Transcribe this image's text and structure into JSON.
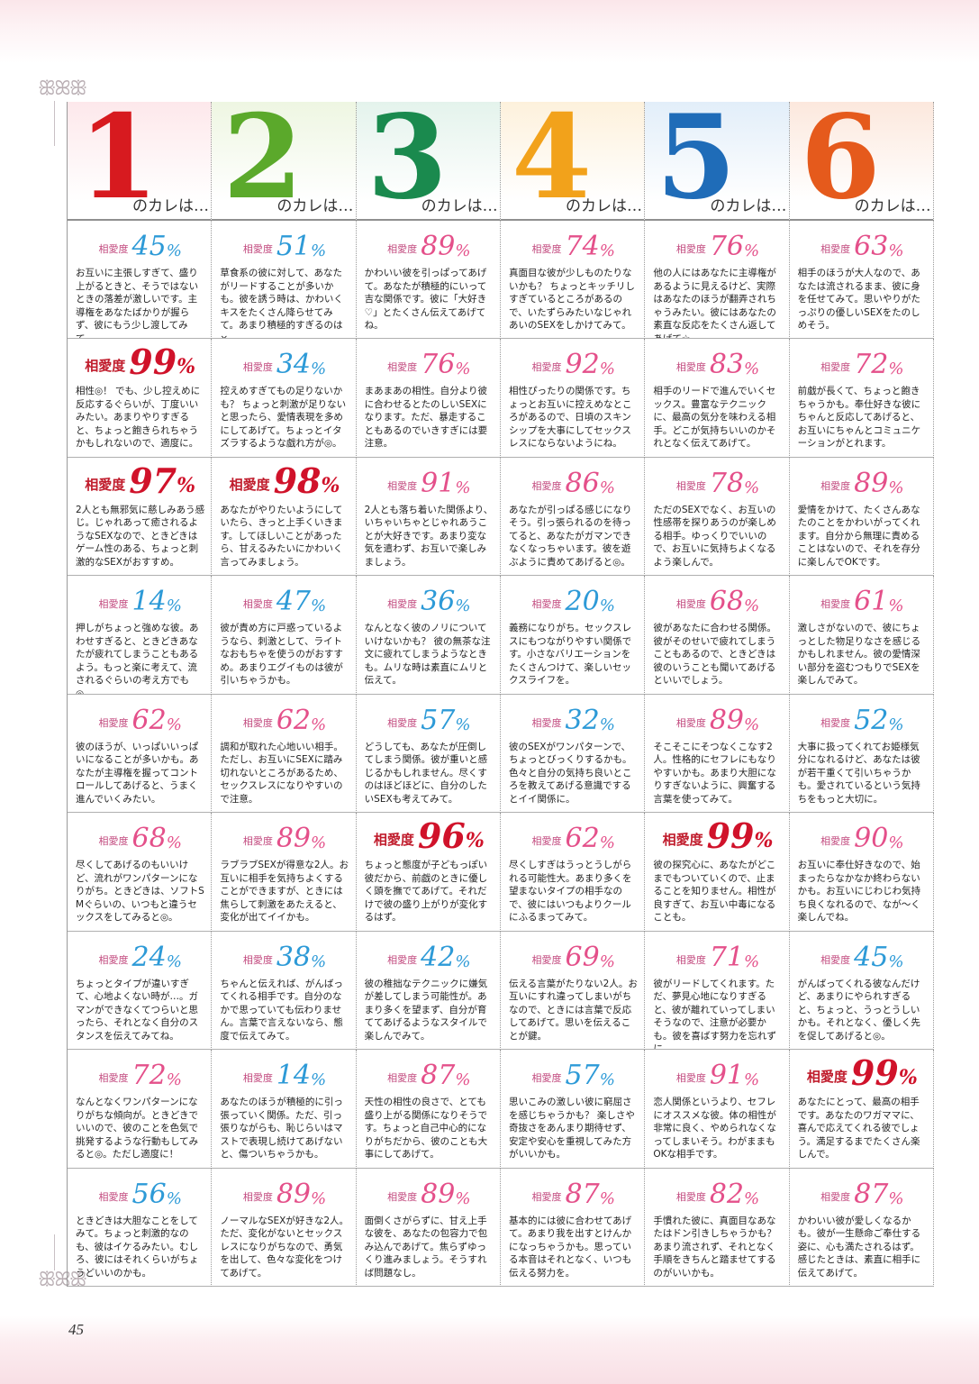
{
  "page_number": "45",
  "headers": [
    {
      "num": "1",
      "suffix": "のカレは…",
      "color": "#d71a1f",
      "bg": "#fde8eb"
    },
    {
      "num": "2",
      "suffix": "のカレは…",
      "color": "#5ba92b",
      "bg": "#eef6e2"
    },
    {
      "num": "3",
      "suffix": "のカレは…",
      "color": "#1a8a4e",
      "bg": "#e4f3ec"
    },
    {
      "num": "4",
      "suffix": "のカレは…",
      "color": "#f2a21b",
      "bg": "#fdf1dc"
    },
    {
      "num": "5",
      "suffix": "のカレは…",
      "color": "#1f6cb8",
      "bg": "#e2eef9"
    },
    {
      "num": "6",
      "suffix": "のカレは…",
      "color": "#e55a1c",
      "bg": "#fce8dd"
    }
  ],
  "rate_label": "相愛度",
  "percent_sign": "%",
  "rows": [
    [
      {
        "value": "45",
        "style": "blue",
        "text": "お互いに主張しすぎて、盛り上がるときと、そうではないときの落差が激しいです。主導権をあなたばかりが握らず、彼にもう少し渡してみて。"
      },
      {
        "value": "51",
        "style": "blue",
        "text": "草食系の彼に対して、あなたがリードすることが多いかも。彼を誘う時は、かわいくキスをたくさん降らせてみて。あまり積極的すぎるのは×。"
      },
      {
        "value": "89",
        "style": "pink",
        "text": "かわいい彼を引っぱってあげて。あなたが積極的にいって吉な関係です。彼に「大好き♡」とたくさん伝えてあげてね。"
      },
      {
        "value": "74",
        "style": "pink",
        "text": "真面目な彼が少しものたりないかも？ ちょっとキッチリしすぎているところがあるので、いたずらみたいなじゃれあいのSEXをしかけてみて。"
      },
      {
        "value": "76",
        "style": "pink",
        "text": "他の人にはあなたに主導権があるように見えるけど、実際はあなたのほうが翻弄されちゃうみたい。彼にはあなたの素直な反応をたくさん返してあげて☆"
      },
      {
        "value": "63",
        "style": "pink",
        "text": "相手のほうが大人なので、あなたは流されるまま、彼に身を任せてみて。思いやりがたっぷりの優しいSEXをたのしめそう。"
      }
    ],
    [
      {
        "value": "99",
        "style": "red",
        "text": "相性◎！ でも、少し控えめに反応するぐらいが、丁度いいみたい。あまりやりすぎると、ちょっと飽きられちゃうかもしれないので、適度に。"
      },
      {
        "value": "34",
        "style": "blue",
        "text": "控えめすぎてもの足りないかも？ ちょっと刺激が足りないと思ったら、愛情表現を多めにしてあげて。ちょっとイタズラするような戯れ方が◎。"
      },
      {
        "value": "76",
        "style": "pink",
        "text": "まあまあの相性。自分より彼に合わせるとたのしいSEXになります。ただ、暴走することもあるのでいきすぎには要注意。"
      },
      {
        "value": "92",
        "style": "pink",
        "text": "相性ぴったりの関係です。ちょっとお互いに控えめなところがあるので、日頃のスキンシップを大事にしてセックスレスにならないようにね。"
      },
      {
        "value": "83",
        "style": "pink",
        "text": "相手のリードで進んでいくセックス。豊富なテクニックに、最高の気分を味わえる相手。どこが気持ちいいのかそれとなく伝えてあげて。"
      },
      {
        "value": "72",
        "style": "pink",
        "text": "前戯が長くて、ちょっと飽きちゃうかも。奉仕好きな彼にちゃんと反応してあげると、お互いにちゃんとコミュニケーションがとれます。"
      }
    ],
    [
      {
        "value": "97",
        "style": "red",
        "text": "2人とも無邪気に慈しみあう感じ。じゃれあって癒されるようなSEXなので、ときどきはゲーム性のある、ちょっと刺激的なSEXがおすすめ。"
      },
      {
        "value": "98",
        "style": "red",
        "text": "あなたがやりたいようにしていたら、きっと上手くいきます。してほしいことがあったら、甘えるみたいにかわいく言ってみましょう。"
      },
      {
        "value": "91",
        "style": "pink",
        "text": "2人とも落ち着いた関係より、いちゃいちゃとじゃれあうことが大好きです。あまり変な気を遣わず、お互いで楽しみましょう。"
      },
      {
        "value": "86",
        "style": "pink",
        "text": "あなたが引っぱる感じになりそう。引っ張られるのを待ってると、あなたがガマンできなくなっちゃいます。彼を遊ぶように責めてあげると◎。"
      },
      {
        "value": "78",
        "style": "pink",
        "text": "ただのSEXでなく、お互いの性感帯を探りあうのが楽しめる相手。ゆっくりでいいので、お互いに気持ちよくなるよう楽しんで。"
      },
      {
        "value": "89",
        "style": "pink",
        "text": "愛情をかけて、たくさんあなたのことをかわいがってくれます。自分から無理に責めることはないので、それを存分に楽しんでOKです。"
      }
    ],
    [
      {
        "value": "14",
        "style": "blue",
        "text": "押しがちょっと強めな彼。あわせすぎると、ときどきあなたが疲れてしまうこともあるよう。もっと楽に考えて、流されるぐらいの考え方でも◎。"
      },
      {
        "value": "47",
        "style": "blue",
        "text": "彼が責め方に戸惑っているようなら、刺激として、ライトなおもちゃを使うのがおすすめ。あまりエグイものは彼が引いちゃうかも。"
      },
      {
        "value": "36",
        "style": "blue",
        "text": "なんとなく彼のノリについていけないかも？ 彼の無茶な注文に疲れてしまうようなときも。ムリな時は素直にムリと伝えて。"
      },
      {
        "value": "20",
        "style": "blue",
        "text": "義務になりがち。セックスレスにもつながりやすい関係です。小さなバリエーションをたくさんつけて、楽しいセックスライフを。"
      },
      {
        "value": "68",
        "style": "pink",
        "text": "彼があなたに合わせる関係。彼がそのせいで疲れてしまうこともあるので、ときどきは彼のいうことも聞いてあげるといいでしょう。"
      },
      {
        "value": "61",
        "style": "pink",
        "text": "激しさがないので、彼にちょっとした物足りなさを感じるかもしれません。彼の愛情深い部分を盗むつもりでSEXを楽しんでみて。"
      }
    ],
    [
      {
        "value": "62",
        "style": "pink",
        "text": "彼のほうが、いっぱいいっぱいになることが多いかも。あなたが主導権を握ってコントロールしてあげると、うまく進んでいくみたい。"
      },
      {
        "value": "62",
        "style": "pink",
        "text": "調和が取れた心地いい相手。ただし、お互いにSEXに踏み切れないところがあるため、セックスレスになりやすいので注意。"
      },
      {
        "value": "57",
        "style": "blue",
        "text": "どうしても、あなたが圧倒してしまう関係。彼が重いと感じるかもしれません。尽くすのはほどほどに、自分のしたいSEXも考えてみて。"
      },
      {
        "value": "32",
        "style": "blue",
        "text": "彼のSEXがワンパターンで、ちょっとびっくりするかも。色々と自分の気持ち良いところを教えてあげる意識でするとイイ関係に。"
      },
      {
        "value": "89",
        "style": "pink",
        "text": "そこそこにそつなくこなす2人。性格的にセフレにもなりやすいかも。あまり大胆になりすぎないように、興奮する言葉を使ってみて。"
      },
      {
        "value": "52",
        "style": "blue",
        "text": "大事に扱ってくれてお姫様気分になれるけど、あなたは彼が若干重くて引いちゃうかも。愛されているという気持ちをもっと大切に。"
      }
    ],
    [
      {
        "value": "68",
        "style": "pink",
        "text": "尽くしてあげるのもいいけど、流れがワンパターンになりがち。ときどきは、ソフトSMぐらいの、いつもと違うセックスをしてみると◎。"
      },
      {
        "value": "89",
        "style": "pink",
        "text": "ラブラブSEXが得意な2人。お互いに相手を気持ちよくすることができますが、ときには焦らして刺激をあたえると、変化が出てイイかも。"
      },
      {
        "value": "96",
        "style": "red",
        "text": "ちょっと態度が子どもっぽい彼だから、前戯のときに優しく頭を撫でてあげて。それだけで彼の盛り上がりが変化するはず。"
      },
      {
        "value": "62",
        "style": "pink",
        "text": "尽くしすぎはうっとうしがられる可能性大。あまり多くを望まないタイプの相手なので、彼にはいつもよりクールにふるまってみて。"
      },
      {
        "value": "99",
        "style": "red",
        "text": "彼の探究心に、あなたがどこまでもついていくので、止まることを知りません。相性が良すぎて、お互い中毒になることも。"
      },
      {
        "value": "90",
        "style": "pink",
        "text": "お互いに奉仕好きなので、始まったらなかなか終わらないかも。お互いにじわじわ気持ち良くなれるので、なが～く楽しんでね。"
      }
    ],
    [
      {
        "value": "24",
        "style": "blue",
        "text": "ちょっとタイプが違いすぎて、心地よくない時が…。ガマンができなくてつらいと思ったら、それとなく自分のスタンスを伝えてみてね。"
      },
      {
        "value": "38",
        "style": "blue",
        "text": "ちゃんと伝えれば、がんばってくれる相手です。自分のなかで思っていても伝わりません。言葉で言えないなら、態度で伝えてみて。"
      },
      {
        "value": "42",
        "style": "blue",
        "text": "彼の稚拙なテクニックに嫌気が差してしまう可能性が。あまり多くを望まず、自分が育ててあげるようなスタイルで楽しんでみて。"
      },
      {
        "value": "69",
        "style": "pink",
        "text": "伝える言葉がたりない2人。お互いにすれ違ってしまいがちなので、ときには言葉で反応してあげて。思いを伝えることが鍵。"
      },
      {
        "value": "71",
        "style": "pink",
        "text": "彼がリードしてくれます。ただ、夢見心地になりすぎると、彼が離れていってしまいそうなので、注意が必要かも。彼を喜ばす努力を忘れずに。"
      },
      {
        "value": "45",
        "style": "blue",
        "text": "がんばってくれる彼なんだけど、あまりにやられすぎると、ちょっと、うっとうしいかも。それとなく、優しく先を促してあげると◎。"
      }
    ],
    [
      {
        "value": "72",
        "style": "pink",
        "text": "なんとなくワンパターンになりがちな傾向が。ときどきでいいので、彼のことを色気で挑発するような行動もしてみると◎。ただし適度に！"
      },
      {
        "value": "14",
        "style": "blue",
        "text": "あなたのほうが積極的に引っ張っていく関係。ただ、引っ張りながらも、恥じらいはマストで表現し続けてあげないと、傷ついちゃうかも。"
      },
      {
        "value": "87",
        "style": "pink",
        "text": "天性の相性の良さで、とても盛り上がる関係になりそうです。ちょっと自己中心的になりがちだから、彼のことも大事にしてあげて。"
      },
      {
        "value": "57",
        "style": "blue",
        "text": "思いこみの激しい彼に窮屈さを感じちゃうかも？ 楽しさや奇抜さをあんまり期待せず、安定や安心を重視してみた方がいいかも。"
      },
      {
        "value": "91",
        "style": "pink",
        "text": "恋人関係というより、セフレにオススメな彼。体の相性が非常に良く、やめられなくなってしまいそう。わがままもOKな相手です。"
      },
      {
        "value": "99",
        "style": "red",
        "text": "あなたにとって、最高の相手です。あなたのワガママに、喜んで応えてくれる彼でしょう。満足するまでたくさん楽しんで。"
      }
    ],
    [
      {
        "value": "56",
        "style": "blue",
        "text": "ときどきは大胆なことをしてみて。ちょっと刺激的なのも、彼はイケるみたい。むしろ、彼にはそれくらいがちょうどいいのかも。"
      },
      {
        "value": "89",
        "style": "pink",
        "text": "ノーマルなSEXが好きな2人。ただ、変化がないとセックスレスになりがちなので、勇気を出して、色々な変化をつけてあげて。"
      },
      {
        "value": "89",
        "style": "pink",
        "text": "面倒くさがらずに、甘え上手な彼を、あなたの包容力で包み込んであげて。焦らずゆっくり進みましょう。そうすれば問題なし。"
      },
      {
        "value": "87",
        "style": "pink",
        "text": "基本的には彼に合わせてあげて。あまり我を出すとけんかになっちゃうかも。思っている本音はそれとなく、いつも伝える努力を。"
      },
      {
        "value": "82",
        "style": "pink",
        "text": "手慣れた彼に、真面目なあなたはドン引きしちゃうかも？ あまり流されず、それとなく手順をきちんと踏ませてするのがいいかも。"
      },
      {
        "value": "87",
        "style": "pink",
        "text": "かわいい彼が愛しくなるかも。彼が一生懸命ご奉仕する姿に、心も満たされるはず。感じたときは、素直に相手に伝えてあげて。"
      }
    ]
  ]
}
